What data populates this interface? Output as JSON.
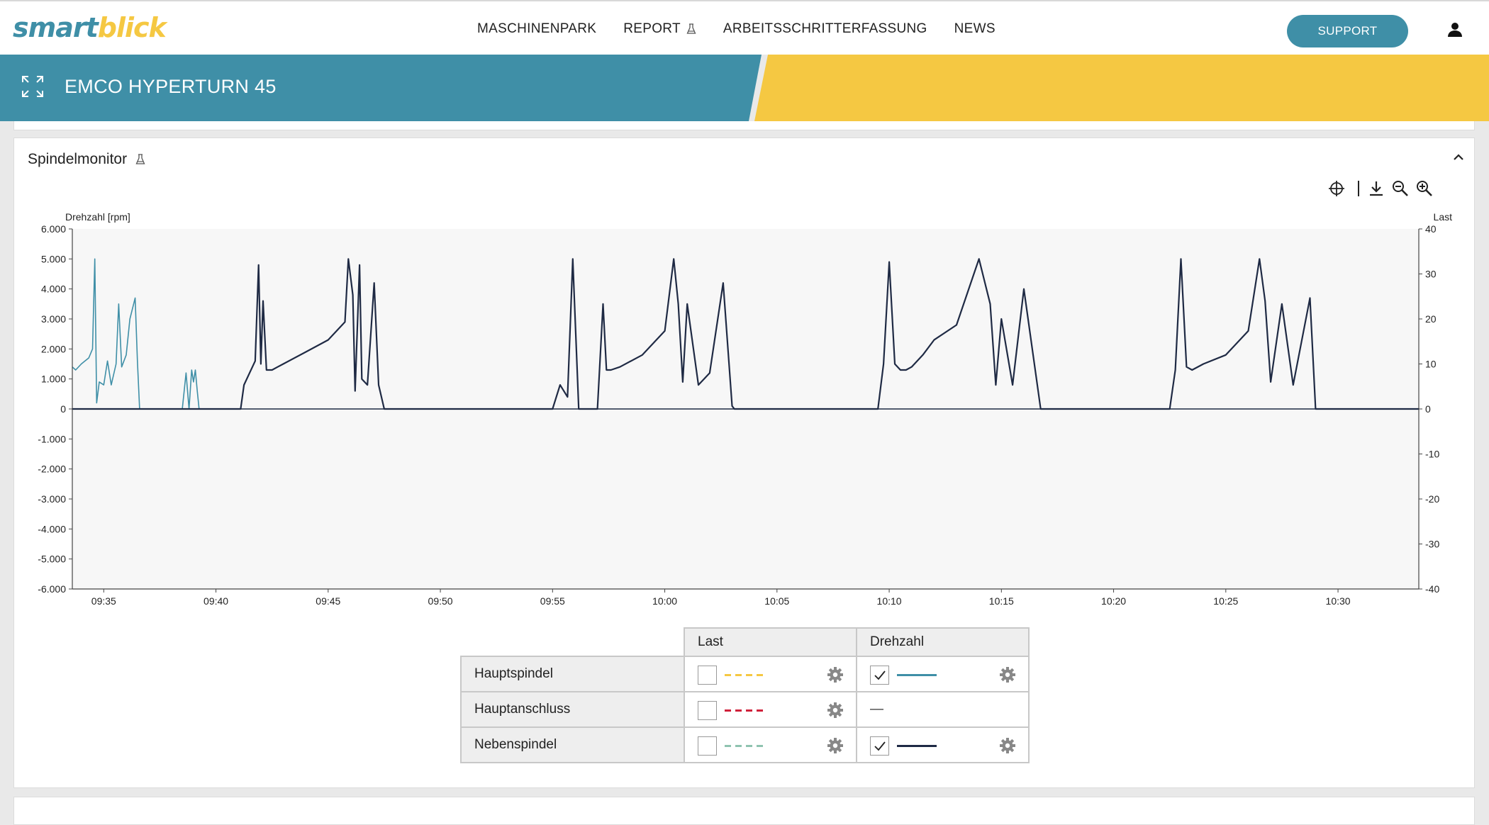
{
  "app": {
    "logo_part1": "smart",
    "logo_part2": "blick"
  },
  "nav": {
    "items": [
      {
        "label": "MASCHINENPARK"
      },
      {
        "label": "REPORT"
      },
      {
        "label": "ARBEITSSCHRITTERFASSUNG"
      },
      {
        "label": "NEWS"
      }
    ],
    "support_label": "SUPPORT"
  },
  "banner": {
    "machine_title": "EMCO HYPERTURN 45"
  },
  "panel": {
    "title": "Spindelmonitor"
  },
  "colors": {
    "brand_teal": "#3f8fa7",
    "brand_yellow": "#f5c842",
    "series_dark": "#1f2a44",
    "last_red": "#d0203a",
    "last_green": "#8fc3b0"
  },
  "toolbar": {
    "icons": [
      "crosshair-icon",
      "download-icon",
      "zoom-out-icon",
      "zoom-in-icon"
    ]
  },
  "chart_data": {
    "type": "line",
    "ylabel": "Drehzahl [rpm]",
    "y2label": "Last",
    "ylim": [
      -6000,
      6000
    ],
    "y2lim": [
      -40,
      40
    ],
    "yticks": [
      "6.000",
      "5.000",
      "4.000",
      "3.000",
      "2.000",
      "1.000",
      "0",
      "-1.000",
      "-2.000",
      "-3.000",
      "-4.000",
      "-5.000",
      "-6.000"
    ],
    "y2ticks": [
      "40",
      "30",
      "20",
      "10",
      "0",
      "-10",
      "-20",
      "-30",
      "-40"
    ],
    "xticks": [
      "09:35",
      "09:40",
      "09:45",
      "09:50",
      "09:55",
      "10:00",
      "10:05",
      "10:10",
      "10:15",
      "10:20",
      "10:25",
      "10:30"
    ],
    "xlim": [
      "09:33:36",
      "10:33:36"
    ],
    "series": [
      {
        "name": "Hauptspindel",
        "x": [
          "09:33:36",
          "09:33:45",
          "09:34:00",
          "09:34:10",
          "09:34:20",
          "09:34:30",
          "09:34:36",
          "09:34:41",
          "09:34:48",
          "09:35:00",
          "09:35:10",
          "09:35:20",
          "09:35:33",
          "09:35:40",
          "09:35:48",
          "09:36:00",
          "09:36:10",
          "09:36:24",
          "09:36:30",
          "09:36:36",
          "09:36:45",
          "09:36:57",
          "09:37:05",
          "09:37:10",
          "09:37:14",
          "09:37:20",
          "09:38:00",
          "09:38:30",
          "09:38:40",
          "09:38:48",
          "09:38:55",
          "09:39:00",
          "09:39:05",
          "09:39:10",
          "09:39:15"
        ],
        "y": [
          1400,
          1300,
          1500,
          1600,
          1700,
          2000,
          5000,
          200,
          900,
          800,
          1600,
          800,
          1500,
          3500,
          1400,
          1800,
          3000,
          3700,
          1600,
          0,
          0,
          0,
          0,
          0,
          0,
          0,
          0,
          0,
          1200,
          0,
          1300,
          900,
          1300,
          600,
          0
        ]
      },
      {
        "name": "Nebenspindel",
        "x": [
          "09:33:36",
          "09:41:06",
          "09:41:15",
          "09:41:30",
          "09:41:45",
          "09:41:54",
          "09:42:00",
          "09:42:06",
          "09:42:15",
          "09:42:30",
          "09:42:45",
          "09:43:00",
          "09:44:00",
          "09:45:00",
          "09:45:45",
          "09:45:54",
          "09:46:06",
          "09:46:12",
          "09:46:24",
          "09:46:30",
          "09:46:45",
          "09:47:03",
          "09:47:15",
          "09:47:30",
          "09:47:45",
          "09:48:00",
          "09:48:06",
          "09:55:00",
          "09:55:20",
          "09:55:40",
          "09:55:54",
          "09:56:10",
          "09:56:30",
          "09:57:00",
          "09:57:15",
          "09:57:24",
          "09:57:36",
          "09:58:00",
          "09:59:00",
          "10:00:00",
          "10:00:24",
          "10:00:36",
          "10:00:48",
          "10:01:00",
          "10:01:30",
          "10:02:00",
          "10:02:36",
          "10:03:00",
          "10:03:06",
          "10:09:30",
          "10:09:45",
          "10:10:00",
          "10:10:15",
          "10:10:30",
          "10:10:45",
          "10:11:00",
          "10:11:30",
          "10:12:00",
          "10:13:00",
          "10:14:00",
          "10:14:30",
          "10:14:45",
          "10:15:00",
          "10:15:30",
          "10:16:00",
          "10:16:45",
          "10:17:00",
          "10:17:06",
          "10:22:30",
          "10:22:45",
          "10:23:00",
          "10:23:15",
          "10:23:30",
          "10:24:00",
          "10:25:00",
          "10:26:00",
          "10:26:30",
          "10:26:45",
          "10:27:00",
          "10:27:30",
          "10:28:00",
          "10:28:45",
          "10:29:00",
          "10:29:06",
          "10:33:36"
        ],
        "y": [
          0,
          0,
          800,
          1200,
          1600,
          4800,
          1500,
          3600,
          1300,
          1300,
          1400,
          1500,
          1900,
          2300,
          2900,
          5000,
          3800,
          600,
          4800,
          1000,
          800,
          4200,
          800,
          0,
          0,
          0,
          0,
          0,
          800,
          400,
          5000,
          0,
          0,
          0,
          3500,
          1300,
          1300,
          1400,
          1800,
          2600,
          5000,
          3500,
          900,
          3500,
          800,
          1200,
          4200,
          100,
          0,
          0,
          1500,
          4900,
          1500,
          1300,
          1300,
          1400,
          1800,
          2300,
          2800,
          5000,
          3500,
          800,
          3000,
          800,
          4000,
          0,
          0,
          0,
          0,
          1300,
          5000,
          1400,
          1300,
          1500,
          1800,
          2600,
          5000,
          3600,
          900,
          3500,
          800,
          3700,
          0,
          0,
          0
        ]
      }
    ]
  },
  "legend_table": {
    "col_last": "Last",
    "col_drehzahl": "Drehzahl",
    "rows": [
      {
        "label": "Hauptspindel",
        "last_checked": false,
        "last_color": "#f5c842",
        "drehzahl_checked": true,
        "drehzahl_color": "#3f8fa7",
        "drehzahl_text": ""
      },
      {
        "label": "Hauptanschluss",
        "last_checked": false,
        "last_color": "#d0203a",
        "drehzahl_checked": null,
        "drehzahl_color": "",
        "drehzahl_text": "—"
      },
      {
        "label": "Nebenspindel",
        "last_checked": false,
        "last_color": "#8fc3b0",
        "drehzahl_checked": true,
        "drehzahl_color": "#1f2a44",
        "drehzahl_text": ""
      }
    ]
  }
}
